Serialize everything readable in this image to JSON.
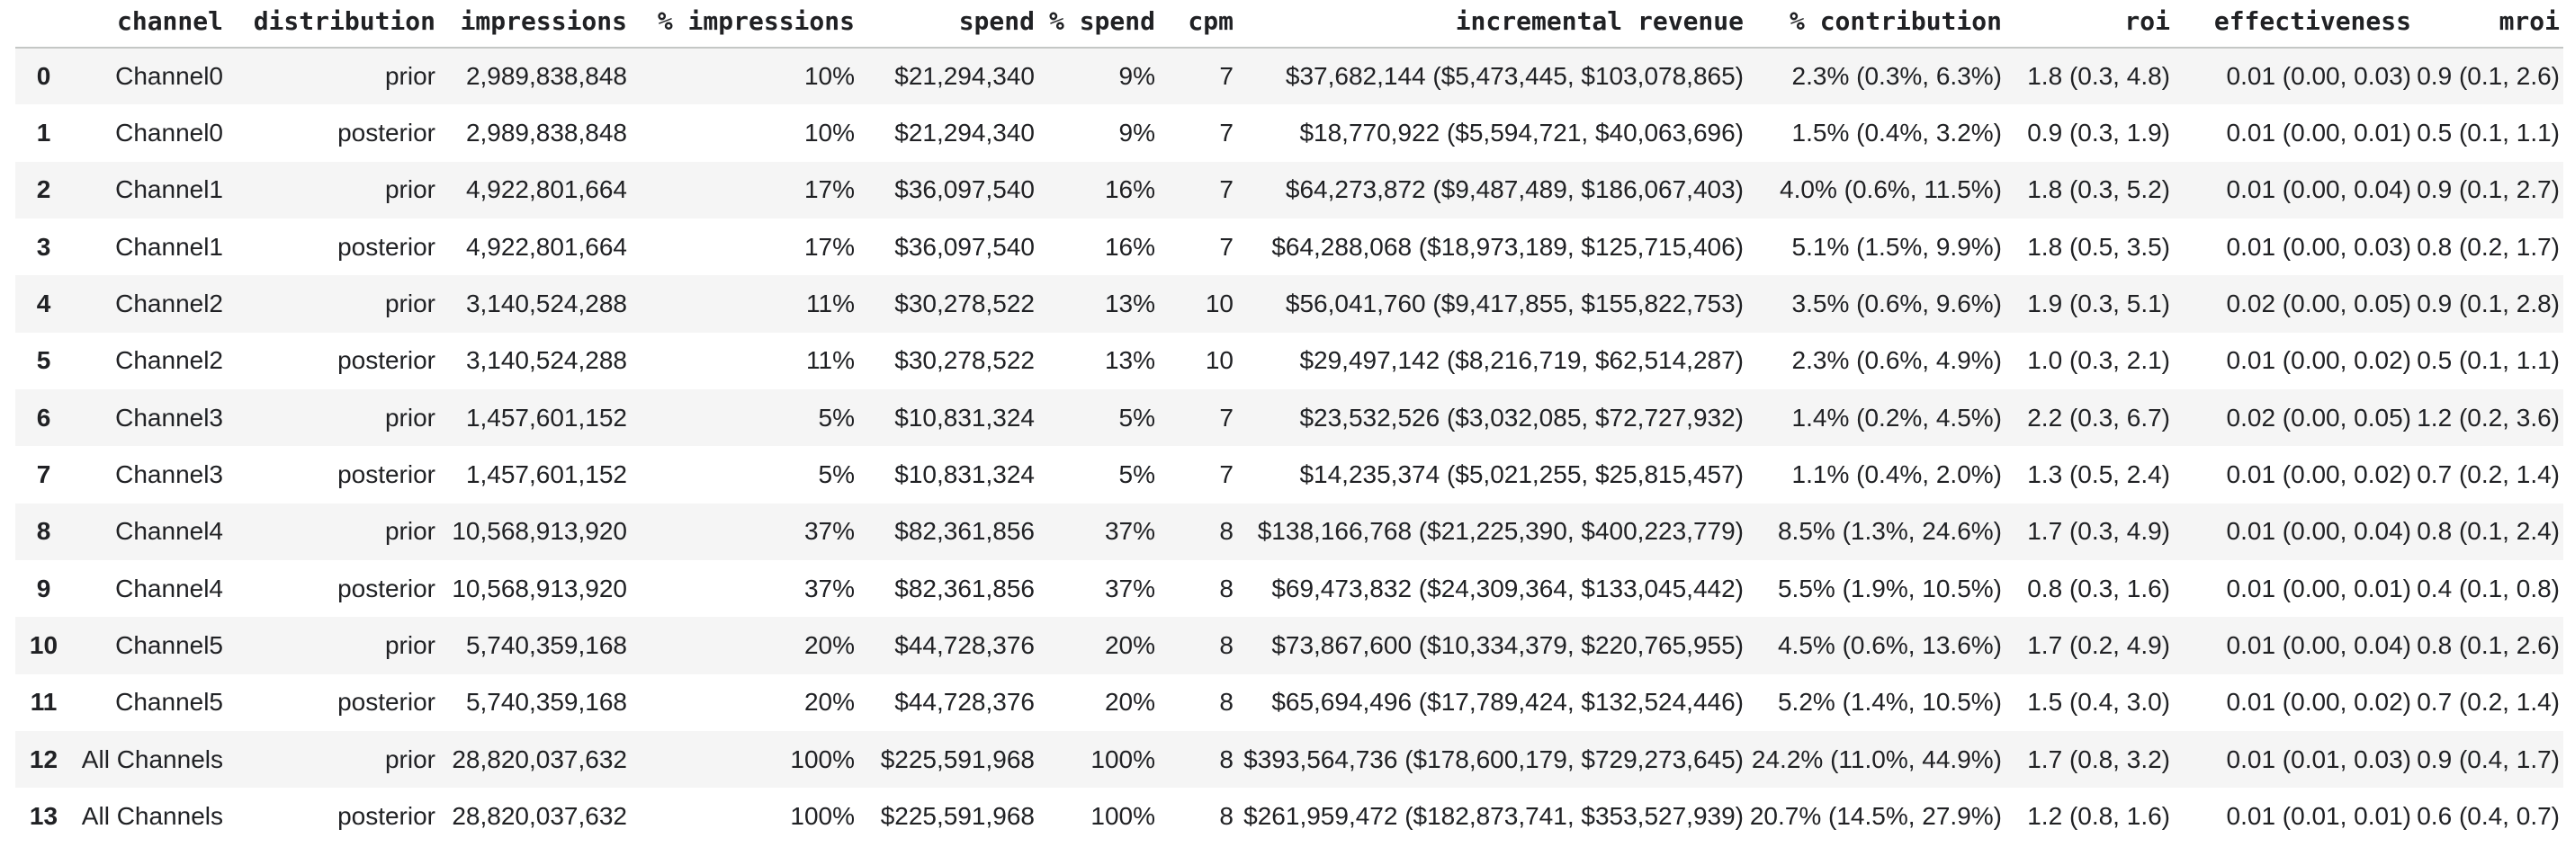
{
  "colors": {
    "background": "#ffffff",
    "stripe": "#f5f5f5",
    "header_rule": "#c4c7c5",
    "text": "#202124"
  },
  "chart_data": {
    "type": "table",
    "title": "",
    "columns": [
      "",
      "channel",
      "distribution",
      "impressions",
      "% impressions",
      "spend",
      "% spend",
      "cpm",
      "incremental revenue",
      "% contribution",
      "roi",
      "effectiveness",
      "mroi"
    ],
    "rows": [
      [
        "0",
        "Channel0",
        "prior",
        "2,989,838,848",
        "10%",
        "$21,294,340",
        "9%",
        "7",
        "$37,682,144 ($5,473,445, $103,078,865)",
        "2.3% (0.3%, 6.3%)",
        "1.8 (0.3, 4.8)",
        "0.01 (0.00, 0.03)",
        "0.9 (0.1, 2.6)"
      ],
      [
        "1",
        "Channel0",
        "posterior",
        "2,989,838,848",
        "10%",
        "$21,294,340",
        "9%",
        "7",
        "$18,770,922 ($5,594,721, $40,063,696)",
        "1.5% (0.4%, 3.2%)",
        "0.9 (0.3, 1.9)",
        "0.01 (0.00, 0.01)",
        "0.5 (0.1, 1.1)"
      ],
      [
        "2",
        "Channel1",
        "prior",
        "4,922,801,664",
        "17%",
        "$36,097,540",
        "16%",
        "7",
        "$64,273,872 ($9,487,489, $186,067,403)",
        "4.0% (0.6%, 11.5%)",
        "1.8 (0.3, 5.2)",
        "0.01 (0.00, 0.04)",
        "0.9 (0.1, 2.7)"
      ],
      [
        "3",
        "Channel1",
        "posterior",
        "4,922,801,664",
        "17%",
        "$36,097,540",
        "16%",
        "7",
        "$64,288,068 ($18,973,189, $125,715,406)",
        "5.1% (1.5%, 9.9%)",
        "1.8 (0.5, 3.5)",
        "0.01 (0.00, 0.03)",
        "0.8 (0.2, 1.7)"
      ],
      [
        "4",
        "Channel2",
        "prior",
        "3,140,524,288",
        "11%",
        "$30,278,522",
        "13%",
        "10",
        "$56,041,760 ($9,417,855, $155,822,753)",
        "3.5% (0.6%, 9.6%)",
        "1.9 (0.3, 5.1)",
        "0.02 (0.00, 0.05)",
        "0.9 (0.1, 2.8)"
      ],
      [
        "5",
        "Channel2",
        "posterior",
        "3,140,524,288",
        "11%",
        "$30,278,522",
        "13%",
        "10",
        "$29,497,142 ($8,216,719, $62,514,287)",
        "2.3% (0.6%, 4.9%)",
        "1.0 (0.3, 2.1)",
        "0.01 (0.00, 0.02)",
        "0.5 (0.1, 1.1)"
      ],
      [
        "6",
        "Channel3",
        "prior",
        "1,457,601,152",
        "5%",
        "$10,831,324",
        "5%",
        "7",
        "$23,532,526 ($3,032,085, $72,727,932)",
        "1.4% (0.2%, 4.5%)",
        "2.2 (0.3, 6.7)",
        "0.02 (0.00, 0.05)",
        "1.2 (0.2, 3.6)"
      ],
      [
        "7",
        "Channel3",
        "posterior",
        "1,457,601,152",
        "5%",
        "$10,831,324",
        "5%",
        "7",
        "$14,235,374 ($5,021,255, $25,815,457)",
        "1.1% (0.4%, 2.0%)",
        "1.3 (0.5, 2.4)",
        "0.01 (0.00, 0.02)",
        "0.7 (0.2, 1.4)"
      ],
      [
        "8",
        "Channel4",
        "prior",
        "10,568,913,920",
        "37%",
        "$82,361,856",
        "37%",
        "8",
        "$138,166,768 ($21,225,390, $400,223,779)",
        "8.5% (1.3%, 24.6%)",
        "1.7 (0.3, 4.9)",
        "0.01 (0.00, 0.04)",
        "0.8 (0.1, 2.4)"
      ],
      [
        "9",
        "Channel4",
        "posterior",
        "10,568,913,920",
        "37%",
        "$82,361,856",
        "37%",
        "8",
        "$69,473,832 ($24,309,364, $133,045,442)",
        "5.5% (1.9%, 10.5%)",
        "0.8 (0.3, 1.6)",
        "0.01 (0.00, 0.01)",
        "0.4 (0.1, 0.8)"
      ],
      [
        "10",
        "Channel5",
        "prior",
        "5,740,359,168",
        "20%",
        "$44,728,376",
        "20%",
        "8",
        "$73,867,600 ($10,334,379, $220,765,955)",
        "4.5% (0.6%, 13.6%)",
        "1.7 (0.2, 4.9)",
        "0.01 (0.00, 0.04)",
        "0.8 (0.1, 2.6)"
      ],
      [
        "11",
        "Channel5",
        "posterior",
        "5,740,359,168",
        "20%",
        "$44,728,376",
        "20%",
        "8",
        "$65,694,496 ($17,789,424, $132,524,446)",
        "5.2% (1.4%, 10.5%)",
        "1.5 (0.4, 3.0)",
        "0.01 (0.00, 0.02)",
        "0.7 (0.2, 1.4)"
      ],
      [
        "12",
        "All Channels",
        "prior",
        "28,820,037,632",
        "100%",
        "$225,591,968",
        "100%",
        "8",
        "$393,564,736 ($178,600,179, $729,273,645)",
        "24.2% (11.0%, 44.9%)",
        "1.7 (0.8, 3.2)",
        "0.01 (0.01, 0.03)",
        "0.9 (0.4, 1.7)"
      ],
      [
        "13",
        "All Channels",
        "posterior",
        "28,820,037,632",
        "100%",
        "$225,591,968",
        "100%",
        "8",
        "$261,959,472 ($182,873,741, $353,527,939)",
        "20.7% (14.5%, 27.9%)",
        "1.2 (0.8, 1.6)",
        "0.01 (0.01, 0.01)",
        "0.6 (0.4, 0.7)"
      ]
    ],
    "layout_hints": {
      "striped_rows": "even",
      "numeric_alignment": "right",
      "index_alignment": "center",
      "header_font": "monospace-bold"
    }
  }
}
